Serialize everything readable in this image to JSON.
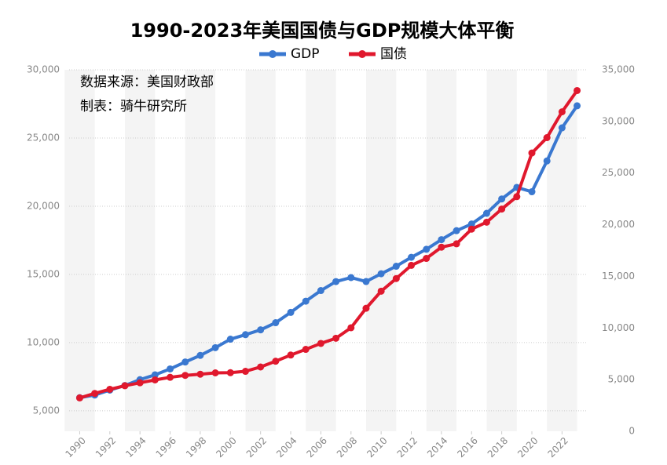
{
  "chart_data": {
    "type": "line",
    "title": "1990-2023年美国国债与GDP规模大体平衡",
    "annotations": [
      "数据来源：美国财政部",
      "制表：骑牛研究所"
    ],
    "x": [
      1990,
      1991,
      1992,
      1993,
      1994,
      1995,
      1996,
      1997,
      1998,
      1999,
      2000,
      2001,
      2002,
      2003,
      2004,
      2005,
      2006,
      2007,
      2008,
      2009,
      2010,
      2011,
      2012,
      2013,
      2014,
      2015,
      2016,
      2017,
      2018,
      2019,
      2020,
      2021,
      2022,
      2023
    ],
    "xlim": [
      1989.3,
      2023.7
    ],
    "xticks": [
      1990,
      1992,
      1994,
      1996,
      1998,
      2000,
      2002,
      2004,
      2006,
      2008,
      2010,
      2012,
      2014,
      2016,
      2018,
      2020,
      2022
    ],
    "ylim": [
      3500,
      30000
    ],
    "yticks": [
      {
        "value": 5000,
        "label": "5,000"
      },
      {
        "value": 10000,
        "label": "10,000"
      },
      {
        "value": 15000,
        "label": "15,000"
      },
      {
        "value": 20000,
        "label": "20,000"
      },
      {
        "value": 25000,
        "label": "25,000"
      },
      {
        "value": 30000,
        "label": "30,000"
      }
    ],
    "y2lim": [
      0,
      35000
    ],
    "y2ticks": [
      0,
      {
        "value": 5000,
        "label": "5,000"
      },
      {
        "value": 10000,
        "label": "10,000"
      },
      {
        "value": 15000,
        "label": "15,000"
      },
      {
        "value": 20000,
        "label": "20,000"
      },
      {
        "value": 25000,
        "label": "25,000"
      },
      {
        "value": 30000,
        "label": "30,000"
      },
      {
        "value": 35000,
        "label": "35,000"
      }
    ],
    "grid": true,
    "legend": "top",
    "series": [
      {
        "name": "GDP",
        "color": "#3a78d0",
        "values": [
          5963,
          6158,
          6520,
          6859,
          7287,
          7640,
          8073,
          8578,
          9063,
          9631,
          10251,
          10582,
          10936,
          11458,
          12214,
          13037,
          13815,
          14475,
          14770,
          14478,
          15049,
          15600,
          16254,
          16843,
          17551,
          18206,
          18695,
          19477,
          20533,
          21381,
          21060,
          23316,
          25744,
          27361
        ]
      },
      {
        "name": "国债",
        "color": "#e0182d",
        "axis": "y2",
        "values": [
          3233,
          3665,
          4065,
          4411,
          4693,
          4974,
          5225,
          5413,
          5526,
          5656,
          5674,
          5807,
          6228,
          6783,
          7379,
          7933,
          8507,
          9008,
          10025,
          11910,
          13562,
          14790,
          16066,
          16738,
          17824,
          18151,
          19573,
          20245,
          21516,
          22719,
          26945,
          28429,
          30929,
          32989
        ]
      }
    ]
  }
}
